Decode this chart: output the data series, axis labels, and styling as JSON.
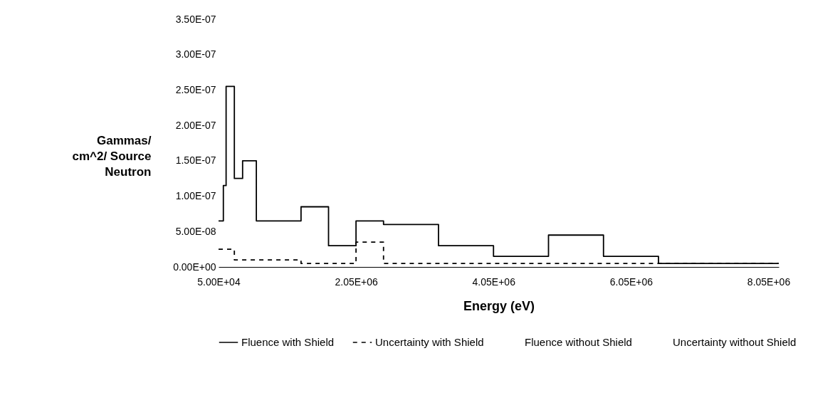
{
  "chart_data": {
    "type": "step",
    "xlabel": "Energy (eV)",
    "ylabel": "Gammas/ cm^2/ Source Neutron",
    "x": [
      50000,
      120000,
      160000,
      280000,
      400000,
      600000,
      1250000,
      1650000,
      2050000,
      2450000,
      3250000,
      4050000,
      4850000,
      5650000,
      6450000,
      8200000
    ],
    "series": [
      {
        "name": "Fluence with Shield",
        "color": "#000000",
        "line_style": "solid",
        "values": [
          6.5e-08,
          1.15e-07,
          2.55e-07,
          1.25e-07,
          1.5e-07,
          6.5e-08,
          8.5e-08,
          3e-08,
          6.5e-08,
          6e-08,
          3e-08,
          1.5e-08,
          4.5e-08,
          1.5e-08,
          5e-09,
          5e-09
        ]
      },
      {
        "name": "Uncertainty with Shield",
        "color": "#000000",
        "line_style": "dashed",
        "values": [
          2.5e-08,
          2.5e-08,
          2.5e-08,
          1e-08,
          1e-08,
          1e-08,
          5e-09,
          5e-09,
          3.5e-08,
          5e-09,
          5e-09,
          5e-09,
          5e-09,
          5e-09,
          5e-09,
          5e-09
        ]
      },
      {
        "name": "Fluence without Shield",
        "line_style": "solid",
        "values": [
          null,
          null,
          null,
          null,
          null,
          null,
          null,
          null,
          null,
          null,
          null,
          null,
          null,
          null,
          null,
          null
        ]
      },
      {
        "name": "Uncertainty without Shield",
        "line_style": "solid",
        "values": [
          null,
          null,
          null,
          null,
          null,
          null,
          null,
          null,
          null,
          null,
          null,
          null,
          null,
          null,
          null,
          null
        ]
      }
    ],
    "xlim": [
      50000,
      8200000
    ],
    "xticks": [
      {
        "value": 50000,
        "label": "5.00E+04"
      },
      {
        "value": 2050000,
        "label": "2.05E+06"
      },
      {
        "value": 4050000,
        "label": "4.05E+06"
      },
      {
        "value": 6050000,
        "label": "6.05E+06"
      },
      {
        "value": 8050000,
        "label": "8.05E+06"
      }
    ],
    "ylim": [
      0,
      3.5e-07
    ],
    "yticks": [
      {
        "value": 0,
        "label": "0.00E+00"
      },
      {
        "value": 5e-08,
        "label": "5.00E-08"
      },
      {
        "value": 1e-07,
        "label": "1.00E-07"
      },
      {
        "value": 1.5e-07,
        "label": "1.50E-07"
      },
      {
        "value": 2e-07,
        "label": "2.00E-07"
      },
      {
        "value": 2.5e-07,
        "label": "2.50E-07"
      },
      {
        "value": 3e-07,
        "label": "3.00E-07"
      },
      {
        "value": 3.5e-07,
        "label": "3.50E-07"
      }
    ],
    "grid": false,
    "legend": "bottom"
  }
}
